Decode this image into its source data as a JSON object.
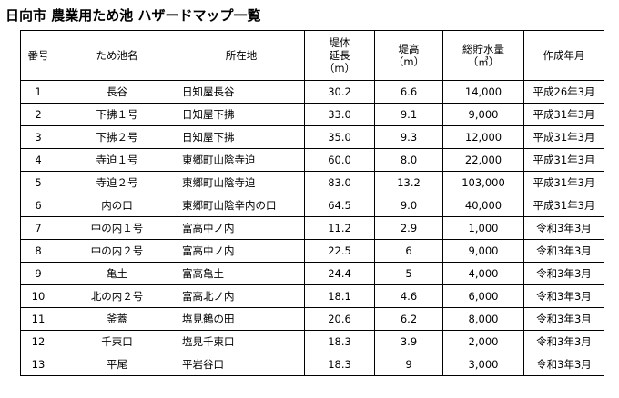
{
  "title": "日向市 農業用ため池 ハザードマップ一覧",
  "headers": {
    "no": "番号",
    "name": "ため池名",
    "location": "所在地",
    "length": [
      "堤体",
      "延長",
      "（m）"
    ],
    "height": [
      "堤高",
      "（m）"
    ],
    "capacity": [
      "総貯水量",
      "（㎥）"
    ],
    "created": "作成年月"
  },
  "rows": [
    {
      "no": "1",
      "name": "長谷",
      "location": "日知屋長谷",
      "length": "30.2",
      "height": "6.6",
      "capacity": "14,000",
      "created": "平成26年3月"
    },
    {
      "no": "2",
      "name": "下拂１号",
      "location": "日知屋下拂",
      "length": "33.0",
      "height": "9.1",
      "capacity": "9,000",
      "created": "平成31年3月"
    },
    {
      "no": "3",
      "name": "下拂２号",
      "location": "日知屋下拂",
      "length": "35.0",
      "height": "9.3",
      "capacity": "12,000",
      "created": "平成31年3月"
    },
    {
      "no": "4",
      "name": "寺迫１号",
      "location": "東郷町山陰寺迫",
      "length": "60.0",
      "height": "8.0",
      "capacity": "22,000",
      "created": "平成31年3月"
    },
    {
      "no": "5",
      "name": "寺迫２号",
      "location": "東郷町山陰寺迫",
      "length": "83.0",
      "height": "13.2",
      "capacity": "103,000",
      "created": "平成31年3月"
    },
    {
      "no": "6",
      "name": "内の口",
      "location": "東郷町山陰辛内の口",
      "length": "64.5",
      "height": "9.0",
      "capacity": "40,000",
      "created": "平成31年3月"
    },
    {
      "no": "7",
      "name": "中の内１号",
      "location": "富高中ノ内",
      "length": "11.2",
      "height": "2.9",
      "capacity": "1,000",
      "created": "令和3年3月"
    },
    {
      "no": "8",
      "name": "中の内２号",
      "location": "富高中ノ内",
      "length": "22.5",
      "height": "6",
      "capacity": "9,000",
      "created": "令和3年3月"
    },
    {
      "no": "9",
      "name": "亀土",
      "location": "富高亀土",
      "length": "24.4",
      "height": "5",
      "capacity": "4,000",
      "created": "令和3年3月"
    },
    {
      "no": "10",
      "name": "北の内２号",
      "location": "富高北ノ内",
      "length": "18.1",
      "height": "4.6",
      "capacity": "6,000",
      "created": "令和3年3月"
    },
    {
      "no": "11",
      "name": "釜蓋",
      "location": "塩見鶴の田",
      "length": "20.6",
      "height": "6.2",
      "capacity": "8,000",
      "created": "令和3年3月"
    },
    {
      "no": "12",
      "name": "千束口",
      "location": "塩見千束口",
      "length": "18.3",
      "height": "3.9",
      "capacity": "2,000",
      "created": "令和3年3月"
    },
    {
      "no": "13",
      "name": "平尾",
      "location": "平岩谷口",
      "length": "18.3",
      "height": "9",
      "capacity": "3,000",
      "created": "令和3年3月"
    }
  ]
}
